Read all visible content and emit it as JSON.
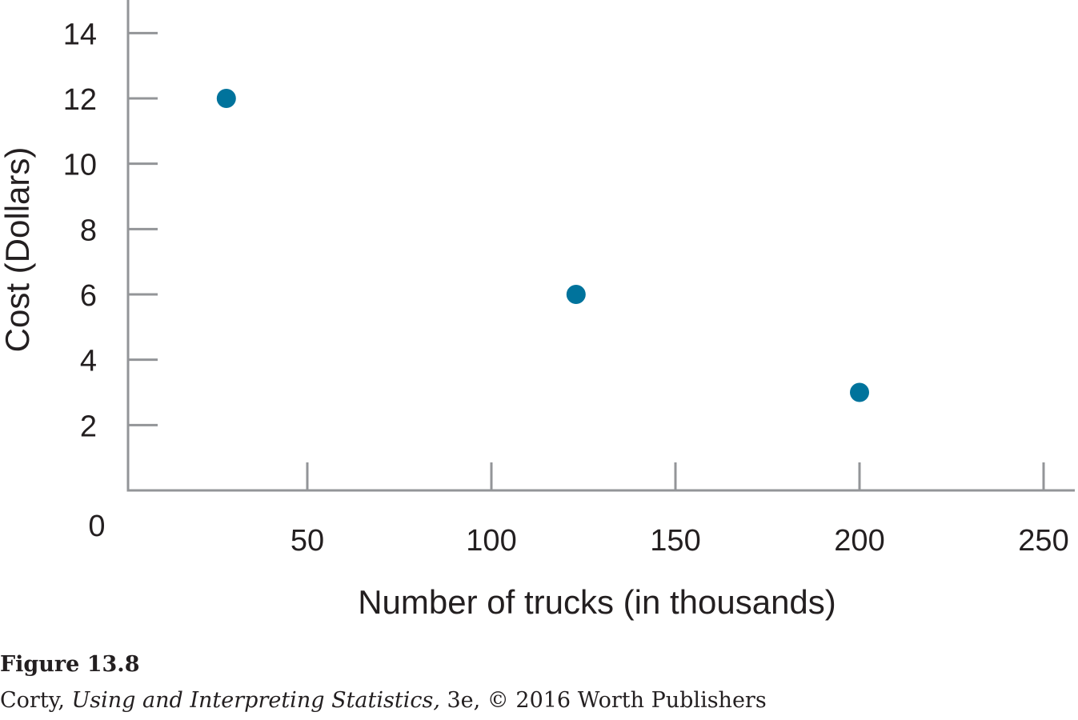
{
  "chart_data": {
    "type": "scatter",
    "xlabel": "Number of trucks (in thousands)",
    "ylabel": "Cost (Dollars)",
    "xlim": [
      0,
      250
    ],
    "ylim": [
      0,
      14
    ],
    "xticks": [
      50,
      100,
      150,
      200,
      250
    ],
    "yticks": [
      2,
      4,
      6,
      8,
      10,
      12,
      14
    ],
    "origin_label": "0",
    "grid": false,
    "legend": "none",
    "series": [
      {
        "x": [
          28,
          123,
          200
        ],
        "y": [
          12,
          6,
          3
        ]
      }
    ],
    "marker_color": "#00739c",
    "axis_color": "#939598"
  },
  "caption": {
    "figure_label": "Figure 13.8",
    "author": "Corty, ",
    "book_title": "Using and Interpreting Statistics,",
    "edition_publisher": " 3e, © 2016 Worth Publishers"
  }
}
